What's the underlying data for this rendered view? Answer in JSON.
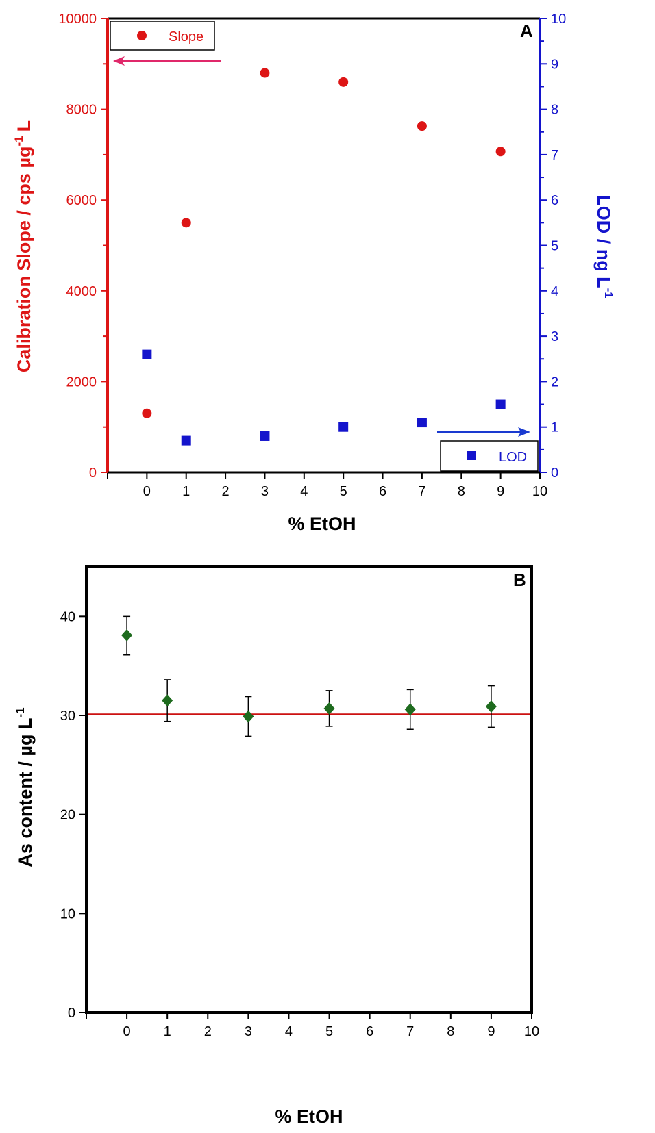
{
  "colors": {
    "slope": "#dd1515",
    "lod": "#1414cc",
    "as": "#1e6b1e",
    "ref_line": "#cc1111",
    "axis": "#000000",
    "arrow_left": "#e0286a",
    "arrow_right": "#1a3ad0"
  },
  "icons": {
    "arrow_left": "arrow-left-icon",
    "arrow_right": "arrow-right-icon"
  },
  "chart_data": [
    {
      "panel": "A",
      "type": "scatter",
      "xlabel": "% EtOH",
      "ylabel_left": "Calibration Slope / cps µg",
      "ylabel_left_sup": "-1",
      "ylabel_left_tail": "L",
      "ylabel_right": "LOD / ng L",
      "ylabel_right_sup": "-1",
      "xlim": [
        -1,
        10
      ],
      "ylim_left": [
        0,
        10000
      ],
      "ylim_right": [
        0,
        10
      ],
      "x_ticks": [
        0,
        1,
        2,
        3,
        4,
        5,
        6,
        7,
        8,
        9,
        10
      ],
      "y_ticks_left": [
        0,
        2000,
        4000,
        6000,
        8000,
        10000
      ],
      "y_ticks_right": [
        0,
        1,
        2,
        3,
        4,
        5,
        6,
        7,
        8,
        9,
        10
      ],
      "grid": false,
      "series": [
        {
          "name": "Slope",
          "axis": "left",
          "marker": "circle",
          "x": [
            0,
            1,
            3,
            5,
            7,
            9
          ],
          "y": [
            1300,
            5500,
            8800,
            8600,
            7630,
            7070
          ]
        },
        {
          "name": "LOD",
          "axis": "right",
          "marker": "square",
          "x": [
            0,
            1,
            3,
            5,
            7,
            9
          ],
          "y": [
            2.6,
            0.7,
            0.8,
            1.0,
            1.1,
            1.5
          ]
        }
      ],
      "legend": [
        {
          "label": "Slope",
          "placement": "top-left"
        },
        {
          "label": "LOD",
          "placement": "bottom-right"
        }
      ]
    },
    {
      "panel": "B",
      "type": "scatter",
      "xlabel": "% EtOH",
      "ylabel": "As content / µg L",
      "ylabel_sup": "-1",
      "xlim": [
        -1,
        10
      ],
      "ylim": [
        0,
        45
      ],
      "x_ticks": [
        0,
        1,
        2,
        3,
        4,
        5,
        6,
        7,
        8,
        9,
        10
      ],
      "y_ticks": [
        0,
        10,
        20,
        30,
        40
      ],
      "grid": false,
      "reference_line": 30.1,
      "series": [
        {
          "name": "",
          "marker": "diamond",
          "x": [
            0,
            1,
            3,
            5,
            7,
            9
          ],
          "y": [
            38.1,
            31.5,
            29.9,
            30.7,
            30.6,
            30.9
          ],
          "err_low": [
            36.1,
            29.4,
            27.9,
            28.9,
            28.6,
            28.8
          ],
          "err_high": [
            40.0,
            33.6,
            31.9,
            32.5,
            32.6,
            33.0
          ]
        }
      ]
    }
  ]
}
